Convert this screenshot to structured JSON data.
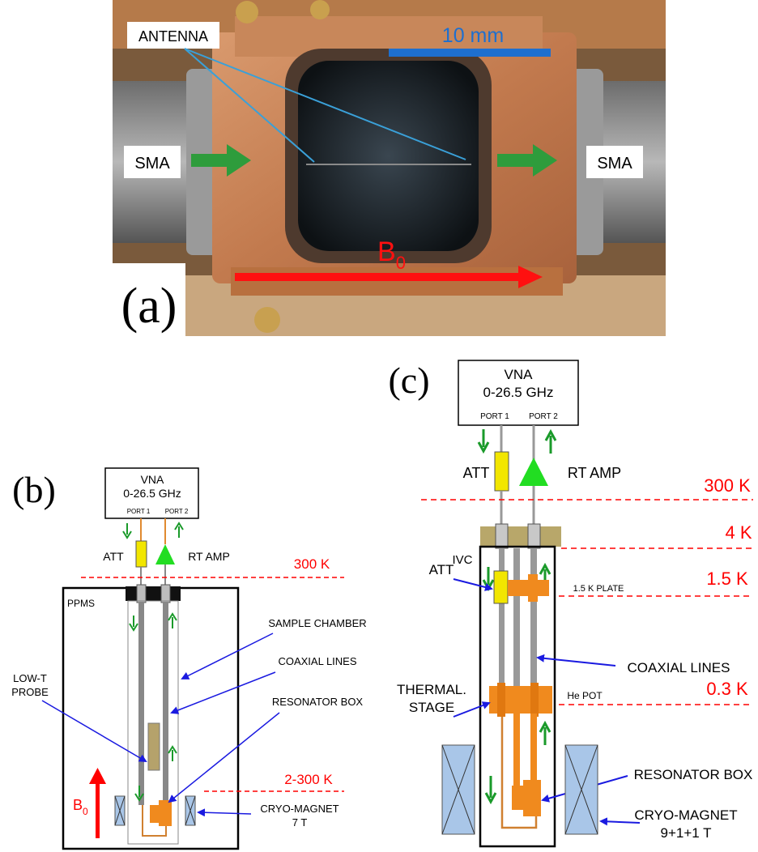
{
  "photo": {
    "panel_label": "(a)",
    "antenna_label": "ANTENNA",
    "scale_label": "10 mm",
    "sma_left": "SMA",
    "sma_right": "SMA",
    "field_label": "B",
    "field_sub": "0"
  },
  "panel_b": {
    "panel_label": "(b)",
    "vna_title": "VNA",
    "vna_range": "0-26.5 GHz",
    "port1": "PORT 1",
    "port2": "PORT 2",
    "att": "ATT",
    "rt_amp": "RT AMP",
    "temp_300": "300 K",
    "ppms": "PPMS",
    "sample_chamber": "SAMPLE CHAMBER",
    "low_t_probe_1": "LOW-T",
    "low_t_probe_2": "PROBE",
    "coaxial_lines": "COAXIAL LINES",
    "resonator_box": "RESONATOR BOX",
    "temp_range": "2-300 K",
    "field_label": "B",
    "field_sub": "0",
    "magnet_1": "CRYO-MAGNET",
    "magnet_2": "7 T"
  },
  "panel_c": {
    "panel_label": "(c)",
    "vna_title": "VNA",
    "vna_range": "0-26.5 GHz",
    "port1": "PORT 1",
    "port2": "PORT 2",
    "att_top": "ATT",
    "rt_amp": "RT AMP",
    "temp_300": "300 K",
    "temp_4": "4 K",
    "ivc": "IVC",
    "att": "ATT",
    "plate_label": "1.5 K PLATE",
    "temp_1_5": "1.5 K",
    "thermal_1": "THERMAL.",
    "thermal_2": "STAGE",
    "coaxial_lines": "COAXIAL LINES",
    "he_pot": "He POT",
    "temp_0_3": "0.3 K",
    "resonator_box": "RESONATOR BOX",
    "magnet_1": "CRYO-MAGNET",
    "magnet_2": "9+1+1 T"
  },
  "colors": {
    "temp_red": "#ff0000",
    "arrow_green": "#1a9a2a",
    "pointer_blue": "#1a1ae0",
    "copper": "#c98558",
    "orange": "#f08a1e",
    "yellow": "#f2e600",
    "magnet_blue": "#a9c6e8",
    "scale_blue": "#1e6fcf"
  }
}
